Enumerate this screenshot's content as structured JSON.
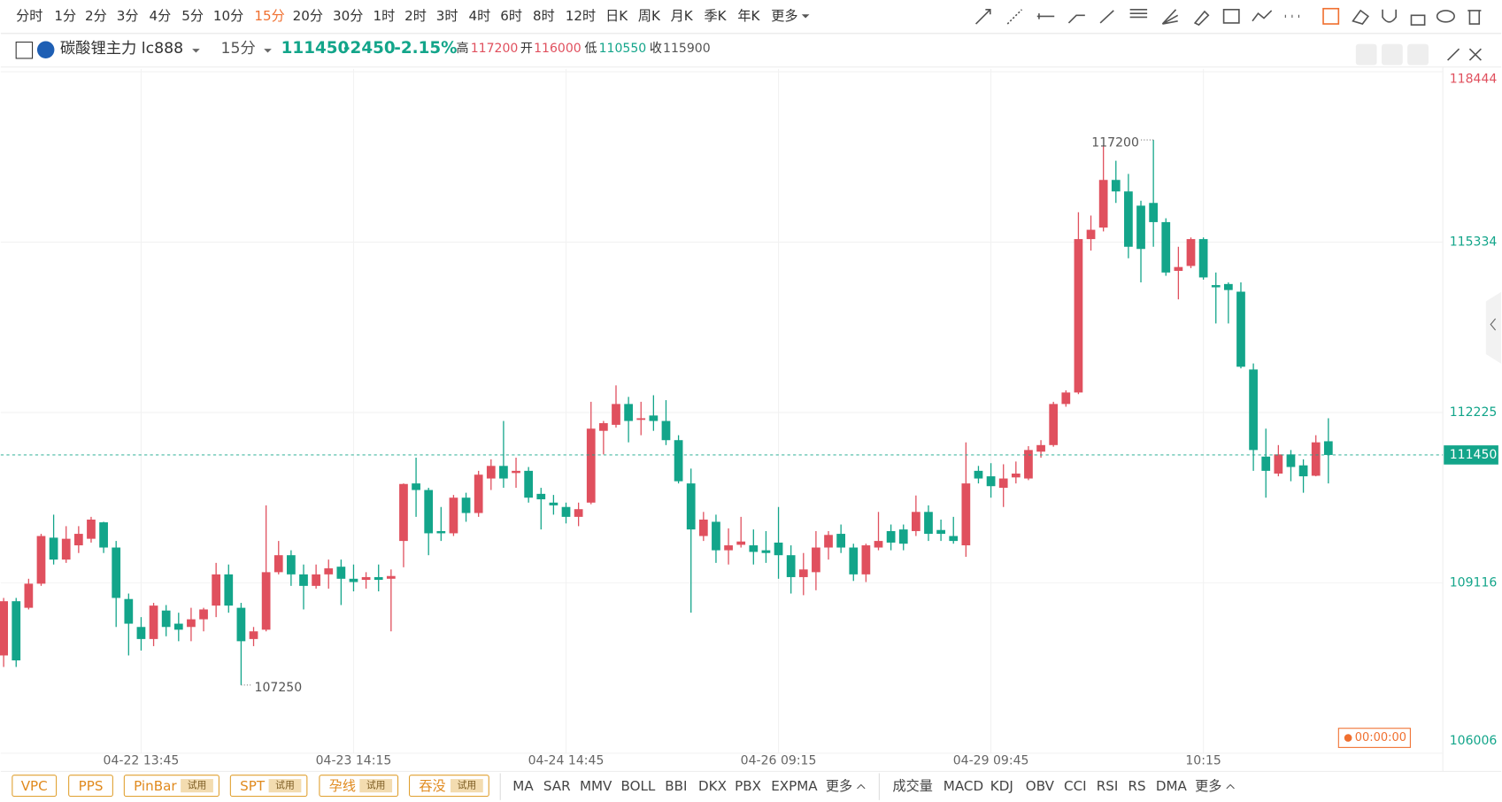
{
  "toolbar": {
    "periods": [
      "分时",
      "1分",
      "2分",
      "3分",
      "4分",
      "5分",
      "10分",
      "15分",
      "20分",
      "30分",
      "1时",
      "2时",
      "3时",
      "4时",
      "6时",
      "8时",
      "12时",
      "日K",
      "周K",
      "月K",
      "季K",
      "年K",
      "更多"
    ],
    "active_period": 7
  },
  "header": {
    "symbol": "碳酸锂主力 lc888",
    "period": "15分",
    "price": "111450",
    "change": "-2450",
    "change_pct": "-2.15%",
    "high_label": "高",
    "high": "117200",
    "open_label": "开",
    "open": "116000",
    "low_label": "低",
    "low": "110550",
    "close_label": "收",
    "close": "115900"
  },
  "timer": "00:00:00",
  "patterns": [
    {
      "label": "VPC"
    },
    {
      "label": "PPS"
    },
    {
      "label": "PinBar",
      "badge": "试用"
    },
    {
      "label": "SPT",
      "badge": "试用"
    },
    {
      "label": "孕线",
      "badge": "试用"
    },
    {
      "label": "吞没",
      "badge": "试用"
    }
  ],
  "main_indicators": [
    "MA",
    "SAR",
    "MMV",
    "BOLL",
    "BBI",
    "DKX",
    "PBX",
    "EXPMA",
    "更多"
  ],
  "sub_indicators": [
    "成交量",
    "MACD",
    "KDJ",
    "OBV",
    "CCI",
    "RSI",
    "RS",
    "DMA",
    "更多"
  ],
  "chart_data": {
    "type": "candlestick",
    "categories": [
      null,
      null,
      null,
      null,
      null,
      null,
      null,
      null,
      null,
      null,
      null,
      "04-22 13:45",
      null,
      null,
      null,
      null,
      null,
      null,
      null,
      null,
      null,
      null,
      null,
      null,
      null,
      null,
      null,
      null,
      "04-23 14:15",
      null,
      null,
      null,
      null,
      null,
      null,
      null,
      null,
      null,
      null,
      null,
      null,
      null,
      null,
      null,
      null,
      "04-24 14:45",
      null,
      null,
      null,
      null,
      null,
      null,
      null,
      null,
      null,
      null,
      null,
      null,
      null,
      null,
      null,
      null,
      "04-26 09:15",
      null,
      null,
      null,
      null,
      null,
      null,
      null,
      null,
      null,
      null,
      null,
      null,
      null,
      null,
      null,
      null,
      "04-29 09:45",
      null,
      null,
      null,
      null,
      null,
      null,
      null,
      null,
      null,
      null,
      null,
      null,
      null,
      null,
      null,
      null,
      "10:15",
      null,
      null,
      null,
      null,
      null,
      null,
      null,
      null,
      null,
      null
    ],
    "open": [
      107790,
      108780,
      108660,
      109100,
      109940,
      109540,
      109800,
      109920,
      110220,
      109760,
      108820,
      108310,
      108090,
      108610,
      108370,
      108310,
      108450,
      108700,
      109270,
      108660,
      108090,
      108260,
      109310,
      109620,
      109270,
      109060,
      109270,
      109410,
      109190,
      109170,
      109220,
      109190,
      109880,
      110930,
      110810,
      110060,
      110020,
      110670,
      110390,
      111020,
      111250,
      111120,
      111160,
      110740,
      110580,
      110500,
      110320,
      110580,
      111890,
      112000,
      112380,
      112090,
      112170,
      112070,
      111720,
      110930,
      109970,
      110230,
      109710,
      109810,
      109800,
      109710,
      109850,
      109620,
      109220,
      109310,
      109760,
      110010,
      109760,
      109270,
      109760,
      110060,
      110090,
      110060,
      110410,
      110080,
      109970,
      109800,
      111160,
      111060,
      110850,
      111040,
      111020,
      111510,
      111630,
      112380,
      112590,
      115390,
      115600,
      116470,
      116260,
      116000,
      116050,
      115700,
      114810,
      114900,
      115390,
      114550,
      114570,
      114430,
      113010,
      111420,
      111110,
      111460,
      111260,
      111070,
      111700
    ],
    "high": [
      108840,
      108840,
      109190,
      110010,
      110360,
      110150,
      110150,
      110320,
      110230,
      109880,
      108920,
      108490,
      108750,
      108710,
      108570,
      108660,
      108660,
      109480,
      109450,
      108750,
      108310,
      110530,
      109880,
      109710,
      109450,
      109450,
      109540,
      109540,
      109450,
      109310,
      109450,
      109360,
      110930,
      111400,
      110850,
      110500,
      110720,
      110760,
      111160,
      111370,
      112070,
      111400,
      111230,
      110850,
      110720,
      110580,
      110580,
      112420,
      112070,
      112720,
      112510,
      112420,
      112540,
      112450,
      111810,
      111200,
      110410,
      110360,
      110110,
      110320,
      110090,
      110060,
      110500,
      109800,
      109660,
      110060,
      110060,
      110180,
      109830,
      109830,
      110410,
      110180,
      110180,
      110710,
      110530,
      110270,
      110320,
      111680,
      111250,
      111300,
      111280,
      111330,
      111610,
      111720,
      112420,
      112630,
      115880,
      115820,
      117100,
      116820,
      116580,
      116090,
      117200,
      115770,
      115250,
      115420,
      115420,
      114780,
      114600,
      114600,
      113120,
      111930,
      111630,
      111540,
      111370,
      111810,
      112120
    ],
    "low": [
      107580,
      107580,
      108630,
      109060,
      109450,
      109480,
      109660,
      109850,
      109660,
      108310,
      107790,
      107880,
      107960,
      108140,
      108050,
      108050,
      108230,
      108490,
      108570,
      107250,
      107960,
      108230,
      109270,
      109060,
      108630,
      109010,
      109010,
      108710,
      108960,
      109010,
      108960,
      108230,
      109400,
      110320,
      109620,
      109880,
      109970,
      110230,
      110320,
      110810,
      110850,
      110850,
      110580,
      110090,
      110360,
      110200,
      110150,
      110550,
      111460,
      111950,
      111680,
      111810,
      111890,
      111630,
      110930,
      108570,
      109880,
      109480,
      109450,
      109760,
      109450,
      109480,
      109190,
      108920,
      108890,
      108980,
      109540,
      109660,
      109150,
      109130,
      109710,
      109710,
      109710,
      109970,
      109880,
      109880,
      109830,
      109590,
      110930,
      110670,
      110500,
      110930,
      110990,
      111400,
      111600,
      112330,
      112560,
      115180,
      115530,
      116050,
      115040,
      114600,
      115250,
      114720,
      114290,
      114860,
      114650,
      113850,
      113850,
      113030,
      111160,
      110670,
      111060,
      110970,
      110760,
      111060,
      110930
    ],
    "close": [
      108780,
      107700,
      109100,
      109970,
      109540,
      109920,
      110010,
      110270,
      109760,
      108840,
      108370,
      108090,
      108700,
      108310,
      108260,
      108450,
      108630,
      109270,
      108700,
      108050,
      108230,
      109310,
      109620,
      109270,
      109060,
      109270,
      109380,
      109190,
      109130,
      109220,
      109170,
      109240,
      110920,
      110810,
      110020,
      110020,
      110670,
      110390,
      111090,
      111250,
      111020,
      111160,
      110670,
      110640,
      110530,
      110320,
      110460,
      111930,
      112030,
      112380,
      112070,
      112120,
      112070,
      111720,
      110970,
      110090,
      110270,
      109710,
      109800,
      109870,
      109680,
      109660,
      109620,
      109220,
      109360,
      109760,
      109990,
      109760,
      109270,
      109800,
      109880,
      109850,
      109830,
      110410,
      110010,
      110010,
      109880,
      110930,
      111020,
      110880,
      111020,
      111110,
      111540,
      111630,
      112380,
      112590,
      115390,
      115560,
      116470,
      116260,
      115250,
      115210,
      115700,
      114780,
      114880,
      115390,
      114690,
      114510,
      114460,
      113060,
      111540,
      111160,
      111460,
      111230,
      111060,
      111680,
      111450
    ],
    "up_color": "#e0505e",
    "down_color": "#13a58a",
    "ylim": [
      106006,
      118444
    ],
    "yticks": [
      106006,
      109116,
      112225,
      115334,
      118444
    ],
    "ytick_colors": [
      "#13a58a",
      "#13a58a",
      "#13a58a",
      "#13a58a",
      "#e0505e"
    ],
    "grid": true,
    "last_price": 111450,
    "max_label": 117200,
    "min_label": 107250
  }
}
